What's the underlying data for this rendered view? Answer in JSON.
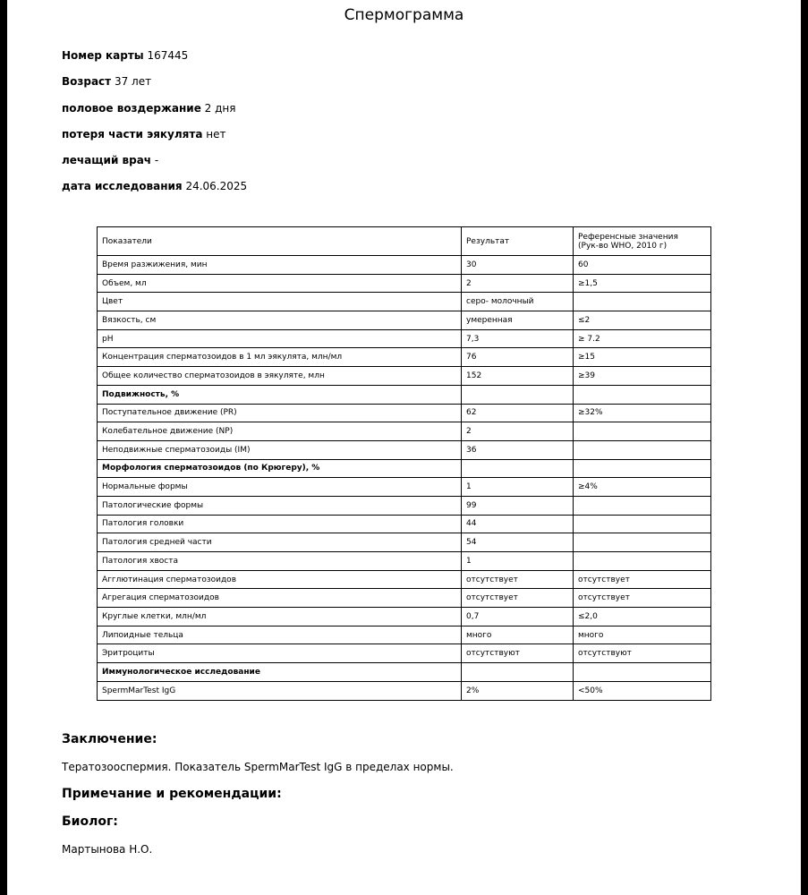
{
  "title": "Спермограмма",
  "fields": [
    {
      "label": "Номер карты",
      "value": "167445"
    },
    {
      "label": "Возраст",
      "value": "37 лет"
    },
    {
      "label": "половое воздержание",
      "value": "2 дня"
    },
    {
      "label": "потеря части эякулята",
      "value": "нет"
    },
    {
      "label": "лечащий врач",
      "value": "-"
    },
    {
      "label": "дата исследования",
      "value": "24.06.2025"
    }
  ],
  "table": {
    "headers": [
      "Показатели",
      "Результат",
      "Референсные значения\n(Рук-во WHO, 2010 г)"
    ],
    "rows": [
      {
        "name": "Время разжижения, мин",
        "result": "30",
        "ref": "60"
      },
      {
        "name": "Объем, мл",
        "result": "2",
        "ref": "≥1,5"
      },
      {
        "name": "Цвет",
        "result": "серо- молочный",
        "ref": ""
      },
      {
        "name": "Вязкость, см",
        "result": "умеренная",
        "ref": "≤2"
      },
      {
        "name": "pH",
        "result": "7,3",
        "ref": "≥ 7.2"
      },
      {
        "name": "Концентрация сперматозоидов в 1 мл эякулята, млн/мл",
        "result": "76",
        "ref": "≥15"
      },
      {
        "name": "Общее количество сперматозоидов в эякуляте, млн",
        "result": "152",
        "ref": "≥39"
      },
      {
        "name": "Подвижность, %",
        "result": "",
        "ref": "",
        "section": true
      },
      {
        "name": "Поступательное движение (PR)",
        "result": "62",
        "ref": "≥32%"
      },
      {
        "name": "Колебательное движение (NP)",
        "result": "2",
        "ref": ""
      },
      {
        "name": "Неподвижные сперматозоиды (IM)",
        "result": "36",
        "ref": ""
      },
      {
        "name": "Морфология сперматозоидов (по Крюгеру), %",
        "result": "",
        "ref": "",
        "section": true
      },
      {
        "name": "Нормальные формы",
        "result": "1",
        "ref": "≥4%"
      },
      {
        "name": "Патологические формы",
        "result": "99",
        "ref": ""
      },
      {
        "name": "Патология головки",
        "result": "44",
        "ref": ""
      },
      {
        "name": "Патология средней части",
        "result": "54",
        "ref": ""
      },
      {
        "name": "Патология хвоста",
        "result": "1",
        "ref": ""
      },
      {
        "name": "Агглютинация сперматозоидов",
        "result": "отсутствует",
        "ref": "отсутствует"
      },
      {
        "name": "Агрегация сперматозоидов",
        "result": "отсутствует",
        "ref": "отсутствует"
      },
      {
        "name": "Круглые клетки, млн/мл",
        "result": "0,7",
        "ref": "≤2,0"
      },
      {
        "name": "Липоидные тельца",
        "result": "много",
        "ref": "много"
      },
      {
        "name": "Эритроциты",
        "result": "отсутствуют",
        "ref": "отсутствуют"
      },
      {
        "name": "Иммунологическое исследование",
        "result": "",
        "ref": "",
        "section": true
      },
      {
        "name": "SpermMarTest IgG",
        "result": "2%",
        "ref": "<50%"
      }
    ]
  },
  "conclusion": {
    "heading": "Заключение:",
    "text": "Тератозооспермия. Показатель SpermMarTest IgG в пределах нормы."
  },
  "notes": {
    "heading": "Примечание и рекомендации:"
  },
  "biologist": {
    "heading": "Биолог:",
    "name": "Мартынова Н.О."
  }
}
